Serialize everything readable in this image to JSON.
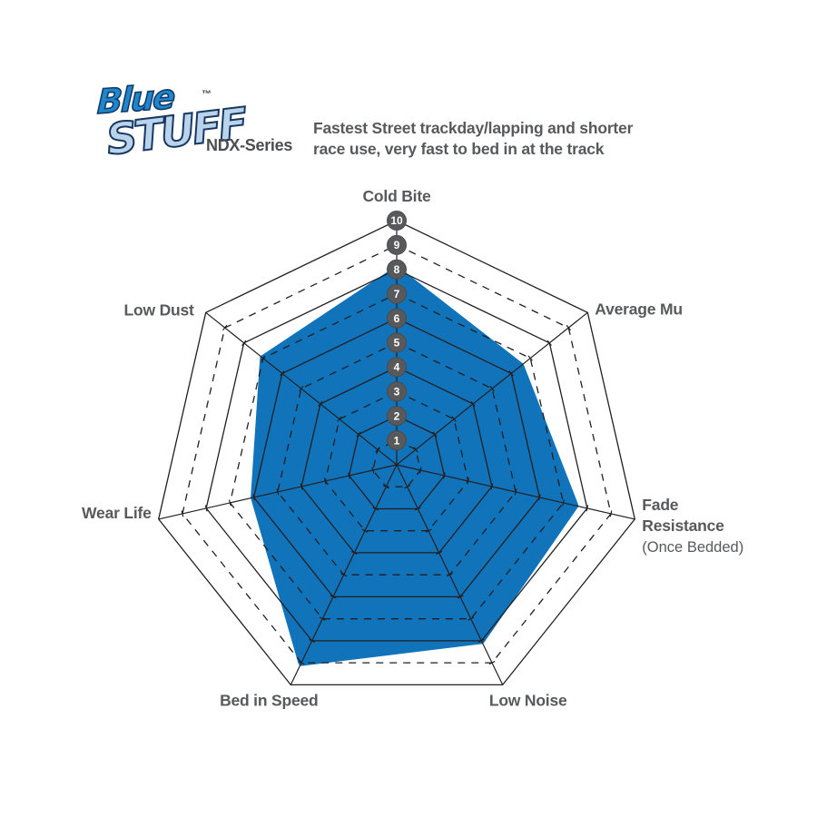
{
  "brand": {
    "line1": "Blue",
    "line2": "STUFF",
    "trademark": "™",
    "series": "NDX-Series"
  },
  "tagline": {
    "line1": "Fastest Street trackday/lapping and shorter",
    "line2": "race use, very fast to bed in at the track"
  },
  "chart_data": {
    "type": "radar",
    "title": "",
    "categories": [
      "Cold Bite",
      "Average Mu",
      "Fade Resistance (Once Bedded)",
      "Low Noise",
      "Bed in Speed",
      "Wear Life",
      "Low Dust"
    ],
    "values": [
      8,
      6.5,
      7.5,
      8,
      9,
      6,
      7
    ],
    "axes": [
      {
        "label_lines": [
          "Cold Bite"
        ],
        "sublabel": "",
        "value": 8
      },
      {
        "label_lines": [
          "Average Mu"
        ],
        "sublabel": "",
        "value": 6.5
      },
      {
        "label_lines": [
          "Fade",
          "Resistance"
        ],
        "sublabel": "(Once Bedded)",
        "value": 7.5
      },
      {
        "label_lines": [
          "Low Noise"
        ],
        "sublabel": "",
        "value": 8
      },
      {
        "label_lines": [
          "Bed in Speed"
        ],
        "sublabel": "",
        "value": 9
      },
      {
        "label_lines": [
          "Wear Life"
        ],
        "sublabel": "",
        "value": 6
      },
      {
        "label_lines": [
          "Low Dust"
        ],
        "sublabel": "",
        "value": 7
      }
    ],
    "scale_min": 0,
    "scale_max": 10,
    "scale_ticks": [
      1,
      2,
      3,
      4,
      5,
      6,
      7,
      8,
      9,
      10
    ],
    "grid": {
      "rings": 10,
      "shape": "heptagon",
      "even_rings": "solid",
      "odd_rings": "dashed",
      "radial_axes": true,
      "axis_unit_ticks": true
    },
    "legend": "none",
    "colors": {
      "series_fill": "#1173b9",
      "grid_line": "#231f20",
      "scale_badge_fill": "#58595b",
      "scale_badge_text": "#ffffff",
      "label_text": "#58595b"
    }
  }
}
